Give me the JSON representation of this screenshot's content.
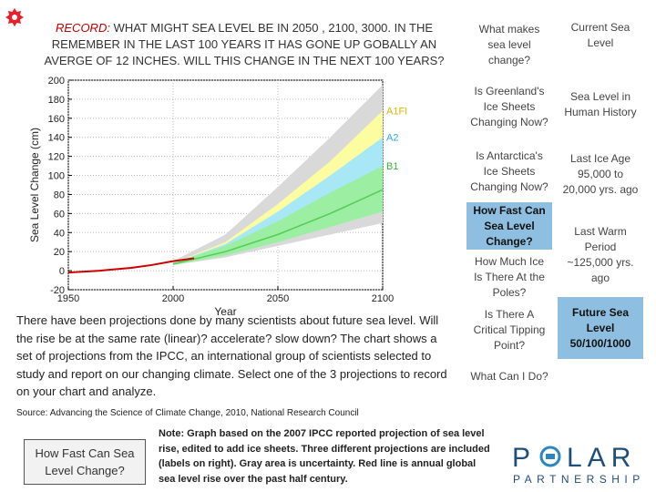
{
  "record": {
    "label": "RECORD:",
    "text": " WHAT MIGHT SEA LEVEL BE IN 2050 , 2100, 3000. IN THE REMEMBER IN THE LAST 100 YEARS IT HAS GONE UP GOBALLY AN AVERGE OF 12 INCHES. WILL THIS CHANGE IN THE NEXT 100 YEARS?",
    "icon": "red-gear-icon",
    "icon_color": "#e8202a"
  },
  "nav_left": [
    {
      "label": "What makes sea level change?"
    },
    {
      "label": "Is Greenland's Ice Sheets Changing Now?"
    },
    {
      "label": "Is Antarctica's Ice Sheets Changing Now?"
    },
    {
      "label": "How Fast Can Sea Level Change?"
    },
    {
      "label": "How Much Ice Is There At the Poles?"
    },
    {
      "label": "Is There A Critical Tipping Point?"
    },
    {
      "label": "What Can I Do?"
    }
  ],
  "nav_right": [
    {
      "label": "Current Sea Level"
    },
    {
      "label": "Sea Level in Human History"
    },
    {
      "label": "Last Ice Age 95,000 to 20,000  yrs. ago"
    },
    {
      "label": "Last Warm Period ~125,000 yrs. ago"
    },
    {
      "label": "Future Sea Level 50/100/1000"
    }
  ],
  "description": "There have been projections done by many scientists about future sea level. Will the rise be at the same rate (linear)? accelerate? slow down? The chart shows a set of projections from the IPCC, an international group of scientists selected to study and report on our changing climate. Select one of the 3 projections to record on your chart and analyze.",
  "source": "Source: Advancing the Science of Climate Change, 2010, National Research Council",
  "bottom_button": "How Fast Can Sea Level Change?",
  "note": "Note: Graph based on the 2007 IPCC reported projection of sea level rise, edited to add ice sheets. Three different projections are included (labels on right).  Gray area is uncertainty. Red line is annual global sea level rise over the past half century.",
  "logo": {
    "line1": "POLAR",
    "line2": "PARTNERSHIP",
    "color": "#1f4e79",
    "accent": "#2e86c1"
  },
  "colors": {
    "selected_nav": "#8fbfe0"
  },
  "chart_data": {
    "type": "area",
    "xlabel": "Year",
    "ylabel": "Sea Level Change (cm)",
    "xlim": [
      1950,
      2100
    ],
    "ylim": [
      -20,
      200
    ],
    "xticks": [
      1950,
      2000,
      2050,
      2100
    ],
    "yticks": [
      -20,
      0,
      20,
      40,
      60,
      80,
      100,
      120,
      140,
      160,
      180,
      200
    ],
    "grid": true,
    "observed": {
      "x": [
        1950,
        1965,
        1980,
        1990,
        2000,
        2010
      ],
      "y": [
        -2,
        0,
        3,
        6,
        10,
        13
      ]
    },
    "series": [
      {
        "name": "A1FI",
        "x": [
          2000,
          2025,
          2050,
          2075,
          2100
        ],
        "upper": [
          8,
          30,
          70,
          115,
          168
        ],
        "color": "#ffff99"
      },
      {
        "name": "A2",
        "x": [
          2000,
          2025,
          2050,
          2075,
          2100
        ],
        "upper": [
          8,
          28,
          62,
          100,
          140
        ],
        "color": "#9ee6ff"
      },
      {
        "name": "B1",
        "x": [
          2000,
          2025,
          2050,
          2075,
          2100
        ],
        "upper": [
          8,
          26,
          52,
          82,
          110
        ],
        "lower": [
          6,
          16,
          30,
          46,
          62
        ],
        "color": "#99ee99"
      }
    ],
    "uncertainty": {
      "x": [
        2000,
        2025,
        2050,
        2075,
        2100
      ],
      "upper": [
        10,
        38,
        88,
        140,
        195
      ],
      "lower": [
        6,
        14,
        26,
        38,
        50
      ],
      "color": "#d9d9d9"
    },
    "central": {
      "x": [
        2000,
        2025,
        2050,
        2075,
        2100
      ],
      "y": [
        7,
        20,
        38,
        60,
        85
      ],
      "color": "#55cc55"
    }
  }
}
